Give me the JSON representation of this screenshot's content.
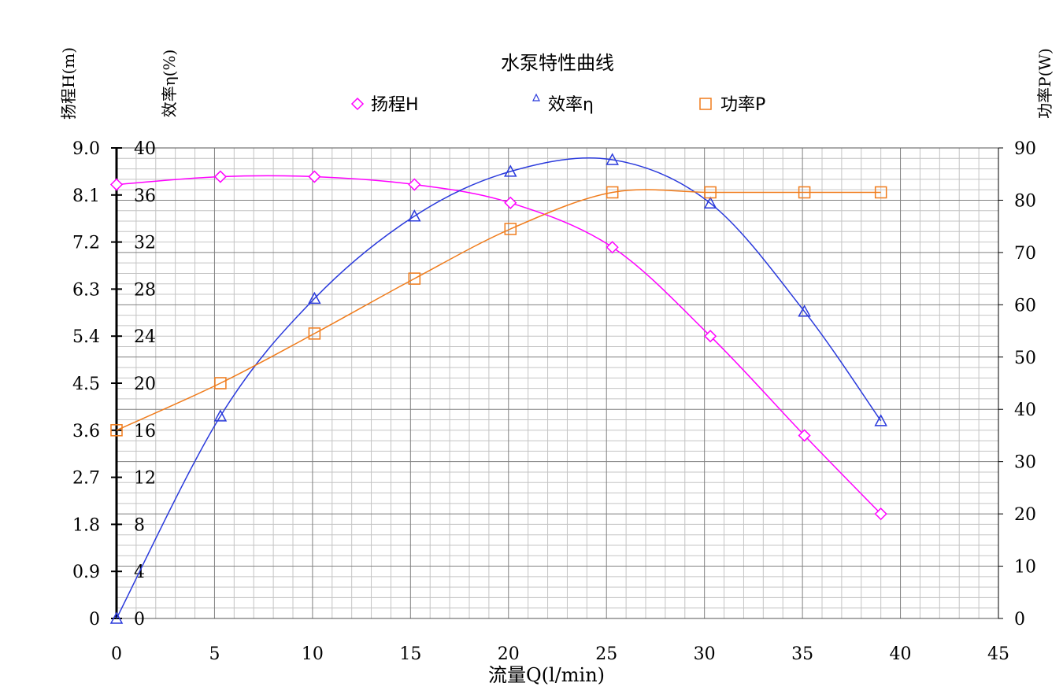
{
  "chart_data": {
    "type": "line",
    "title": "水泵特性曲线",
    "xlabel": "流量Q(l/min)",
    "xlim": [
      0,
      45
    ],
    "x_ticks": [
      "0",
      "5",
      "10",
      "15",
      "20",
      "25",
      "30",
      "35",
      "40",
      "45"
    ],
    "grid": true,
    "legend_position": "top-center",
    "axes": {
      "head": {
        "label": "扬程H(m)",
        "ylim": [
          0,
          9.0
        ],
        "ticks": [
          "0",
          "0.9",
          "1.8",
          "2.7",
          "3.6",
          "4.5",
          "5.4",
          "6.3",
          "7.2",
          "8.1",
          "9.0"
        ]
      },
      "eff": {
        "label": "效率η(%)",
        "ylim": [
          0,
          40
        ],
        "ticks": [
          "0",
          "4",
          "8",
          "12",
          "16",
          "20",
          "24",
          "28",
          "32",
          "36",
          "40"
        ]
      },
      "power": {
        "label": "功率P(W)",
        "ylim": [
          0,
          90
        ],
        "ticks": [
          "0",
          "10",
          "20",
          "30",
          "40",
          "50",
          "60",
          "70",
          "80",
          "90"
        ]
      }
    },
    "series": [
      {
        "name": "扬程H",
        "axis": "head",
        "marker": "diamond",
        "color": "#ff00ff",
        "x": [
          0,
          5.3,
          10.1,
          15.2,
          20.1,
          25.3,
          30.3,
          35.1,
          39.0
        ],
        "y": [
          8.3,
          8.45,
          8.45,
          8.3,
          7.95,
          7.1,
          5.4,
          3.5,
          2.0
        ]
      },
      {
        "name": "效率η",
        "axis": "eff",
        "marker": "triangle",
        "color": "#2a3adc",
        "x": [
          0,
          5.3,
          10.1,
          15.2,
          20.1,
          25.3,
          30.3,
          35.1,
          39.0
        ],
        "y": [
          0,
          17.2,
          27.2,
          34.2,
          38.0,
          39.0,
          35.3,
          26.1,
          16.8
        ]
      },
      {
        "name": "功率P",
        "axis": "power",
        "marker": "square",
        "color": "#f07c1c",
        "x": [
          0,
          5.3,
          10.1,
          15.2,
          20.1,
          25.3,
          30.3,
          35.1,
          39.0
        ],
        "y": [
          36,
          45,
          54.5,
          65,
          74.5,
          81.5,
          81.5,
          81.5,
          81.5
        ]
      }
    ]
  }
}
